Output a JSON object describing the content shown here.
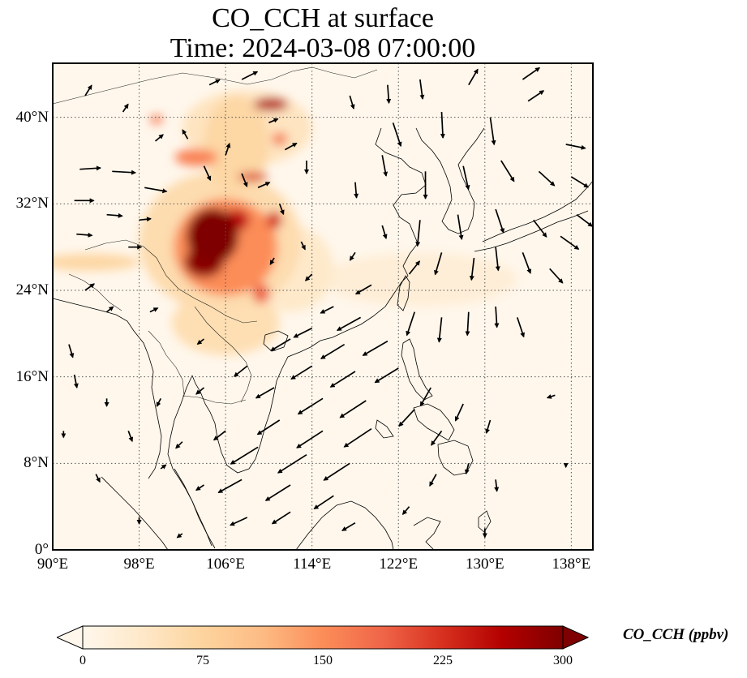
{
  "title": {
    "line1": "CO_CCH at surface",
    "line2": "Time: 2024-03-08 07:00:00"
  },
  "map": {
    "extent": {
      "lon_min": 90,
      "lon_max": 140,
      "lat_min": 0,
      "lat_max": 45
    },
    "lat_ticks": [
      {
        "value": 0,
        "label": "0°"
      },
      {
        "value": 8,
        "label": "8°N"
      },
      {
        "value": 16,
        "label": "16°N"
      },
      {
        "value": 24,
        "label": "24°N"
      },
      {
        "value": 32,
        "label": "32°N"
      },
      {
        "value": 40,
        "label": "40°N"
      }
    ],
    "lon_ticks": [
      {
        "value": 90,
        "label": "90°E"
      },
      {
        "value": 98,
        "label": "98°E"
      },
      {
        "value": 106,
        "label": "106°E"
      },
      {
        "value": 114,
        "label": "114°E"
      },
      {
        "value": 122,
        "label": "122°E"
      },
      {
        "value": 130,
        "label": "130°E"
      },
      {
        "value": 138,
        "label": "138°E"
      }
    ],
    "gridlines": "dotted",
    "colormap_stops": [
      "#fff7ec",
      "#fee8c8",
      "#fdd49e",
      "#fdbb84",
      "#fc8d59",
      "#ef6548",
      "#d7301f",
      "#b30000",
      "#7f0000"
    ],
    "concentration_features": [
      {
        "lon": 104.8,
        "lat": 29.0,
        "rlon": 2.4,
        "rlat": 2.6,
        "value": 300
      },
      {
        "lon": 104.0,
        "lat": 26.6,
        "rlon": 1.8,
        "rlat": 1.4,
        "value": 290
      },
      {
        "lon": 107.0,
        "lat": 30.5,
        "rlon": 1.2,
        "rlat": 1.0,
        "value": 250
      },
      {
        "lon": 106.0,
        "lat": 28.0,
        "rlon": 4.8,
        "rlat": 4.5,
        "value": 150
      },
      {
        "lon": 105.5,
        "lat": 28.5,
        "rlon": 7.5,
        "rlat": 6.5,
        "value": 60
      },
      {
        "lon": 110.2,
        "lat": 41.2,
        "rlon": 1.6,
        "rlat": 0.6,
        "value": 260
      },
      {
        "lon": 111.0,
        "lat": 38.0,
        "rlon": 0.7,
        "rlat": 0.6,
        "value": 170
      },
      {
        "lon": 108.5,
        "lat": 34.5,
        "rlon": 1.4,
        "rlat": 0.4,
        "value": 220
      },
      {
        "lon": 103.3,
        "lat": 36.3,
        "rlon": 2.0,
        "rlat": 0.8,
        "value": 160
      },
      {
        "lon": 99.6,
        "lat": 39.8,
        "rlon": 0.6,
        "rlat": 0.4,
        "value": 170
      },
      {
        "lon": 110.5,
        "lat": 30.5,
        "rlon": 0.7,
        "rlat": 0.8,
        "value": 230
      },
      {
        "lon": 109.3,
        "lat": 23.7,
        "rlon": 0.8,
        "rlat": 0.9,
        "value": 190
      },
      {
        "lon": 107.0,
        "lat": 37.5,
        "rlon": 3.0,
        "rlat": 4.5,
        "value": 70
      },
      {
        "lon": 108.0,
        "lat": 39.0,
        "rlon": 6.0,
        "rlat": 3.5,
        "value": 45
      },
      {
        "lon": 106.0,
        "lat": 21.0,
        "rlon": 5.0,
        "rlat": 3.0,
        "value": 55
      },
      {
        "lon": 93.5,
        "lat": 26.6,
        "rlon": 4.5,
        "rlat": 0.8,
        "value": 70
      },
      {
        "lon": 112.0,
        "lat": 26.0,
        "rlon": 4.0,
        "rlat": 4.0,
        "value": 35
      },
      {
        "lon": 124.0,
        "lat": 25.0,
        "rlon": 9.0,
        "rlat": 2.5,
        "value": 22
      }
    ],
    "wind_vectors": [
      {
        "lon": 92.5,
        "lat": 35.2,
        "u": 1.6,
        "v": 0.1
      },
      {
        "lon": 95.5,
        "lat": 35.0,
        "u": 1.8,
        "v": -0.1
      },
      {
        "lon": 98.5,
        "lat": 33.5,
        "u": 1.7,
        "v": -0.3
      },
      {
        "lon": 92.0,
        "lat": 32.3,
        "u": 1.5,
        "v": 0.0
      },
      {
        "lon": 95.0,
        "lat": 31.0,
        "u": 1.2,
        "v": -0.1
      },
      {
        "lon": 92.2,
        "lat": 29.2,
        "u": 1.2,
        "v": -0.1
      },
      {
        "lon": 98.0,
        "lat": 30.5,
        "u": 0.9,
        "v": 0.1
      },
      {
        "lon": 97.0,
        "lat": 28.0,
        "u": 1.0,
        "v": 0.0
      },
      {
        "lon": 93.0,
        "lat": 24.0,
        "u": 0.7,
        "v": 0.5
      },
      {
        "lon": 95.0,
        "lat": 22.0,
        "u": 0.5,
        "v": 0.4
      },
      {
        "lon": 99.0,
        "lat": 22.0,
        "u": 0.6,
        "v": 0.3
      },
      {
        "lon": 91.5,
        "lat": 19.0,
        "u": 0.3,
        "v": -1.0
      },
      {
        "lon": 92.0,
        "lat": 16.2,
        "u": 0.2,
        "v": -1.0
      },
      {
        "lon": 95.0,
        "lat": 14.0,
        "u": 0.0,
        "v": -0.6
      },
      {
        "lon": 97.0,
        "lat": 11.0,
        "u": 0.3,
        "v": -0.8
      },
      {
        "lon": 91.0,
        "lat": 11.0,
        "u": 0.0,
        "v": -0.5
      },
      {
        "lon": 94.0,
        "lat": 7.0,
        "u": 0.3,
        "v": -0.6
      },
      {
        "lon": 100.0,
        "lat": 7.5,
        "u": 0.4,
        "v": 0.3
      },
      {
        "lon": 93.0,
        "lat": 42.0,
        "u": 0.5,
        "v": 0.8
      },
      {
        "lon": 96.5,
        "lat": 40.5,
        "u": 0.4,
        "v": 0.6
      },
      {
        "lon": 99.5,
        "lat": 37.8,
        "u": 0.6,
        "v": 0.5
      },
      {
        "lon": 102.5,
        "lat": 38.0,
        "u": -0.4,
        "v": 0.7
      },
      {
        "lon": 104.0,
        "lat": 35.5,
        "u": 0.5,
        "v": -1.1
      },
      {
        "lon": 106.0,
        "lat": 36.5,
        "u": 0.3,
        "v": 0.9
      },
      {
        "lon": 107.5,
        "lat": 34.8,
        "u": 0.4,
        "v": -1.0
      },
      {
        "lon": 109.0,
        "lat": 33.5,
        "u": 0.9,
        "v": 0.4
      },
      {
        "lon": 104.5,
        "lat": 43.0,
        "u": 0.8,
        "v": 0.4
      },
      {
        "lon": 107.5,
        "lat": 43.5,
        "u": 1.2,
        "v": 0.6
      },
      {
        "lon": 110.0,
        "lat": 39.5,
        "u": 0.7,
        "v": 0.3
      },
      {
        "lon": 111.5,
        "lat": 37.0,
        "u": 0.9,
        "v": 0.5
      },
      {
        "lon": 113.5,
        "lat": 36.0,
        "u": 0.0,
        "v": -1.0
      },
      {
        "lon": 111.0,
        "lat": 32.0,
        "u": 0.3,
        "v": -0.8
      },
      {
        "lon": 113.0,
        "lat": 28.5,
        "u": 0.3,
        "v": -0.6
      },
      {
        "lon": 110.5,
        "lat": 27.0,
        "u": -0.3,
        "v": -0.5
      },
      {
        "lon": 114.0,
        "lat": 25.5,
        "u": -0.5,
        "v": -0.5
      },
      {
        "lon": 116.0,
        "lat": 22.5,
        "u": -1.0,
        "v": -0.5
      },
      {
        "lon": 114.0,
        "lat": 20.5,
        "u": -1.4,
        "v": -0.7
      },
      {
        "lon": 118.5,
        "lat": 21.5,
        "u": -1.8,
        "v": -1.0
      },
      {
        "lon": 112.0,
        "lat": 19.5,
        "u": -1.5,
        "v": -0.9
      },
      {
        "lon": 117.0,
        "lat": 19.0,
        "u": -1.8,
        "v": -1.1
      },
      {
        "lon": 121.0,
        "lat": 19.3,
        "u": -1.9,
        "v": -1.1
      },
      {
        "lon": 114.0,
        "lat": 17.0,
        "u": -1.6,
        "v": -1.0
      },
      {
        "lon": 118.0,
        "lat": 16.5,
        "u": -1.9,
        "v": -1.2
      },
      {
        "lon": 122.0,
        "lat": 16.8,
        "u": -1.8,
        "v": -1.1
      },
      {
        "lon": 110.5,
        "lat": 15.0,
        "u": -1.4,
        "v": -0.8
      },
      {
        "lon": 115.0,
        "lat": 14.0,
        "u": -1.9,
        "v": -1.2
      },
      {
        "lon": 119.0,
        "lat": 13.8,
        "u": -2.0,
        "v": -1.3
      },
      {
        "lon": 111.0,
        "lat": 12.0,
        "u": -1.7,
        "v": -1.1
      },
      {
        "lon": 115.0,
        "lat": 11.0,
        "u": -2.0,
        "v": -1.3
      },
      {
        "lon": 119.5,
        "lat": 11.2,
        "u": -2.1,
        "v": -1.4
      },
      {
        "lon": 109.0,
        "lat": 9.5,
        "u": -2.1,
        "v": -1.3
      },
      {
        "lon": 113.5,
        "lat": 8.8,
        "u": -2.2,
        "v": -1.4
      },
      {
        "lon": 117.5,
        "lat": 8.0,
        "u": -2.0,
        "v": -1.3
      },
      {
        "lon": 107.5,
        "lat": 6.5,
        "u": -1.8,
        "v": -1.0
      },
      {
        "lon": 112.0,
        "lat": 6.0,
        "u": -1.9,
        "v": -1.2
      },
      {
        "lon": 116.0,
        "lat": 5.0,
        "u": -1.5,
        "v": -1.0
      },
      {
        "lon": 112.0,
        "lat": 3.5,
        "u": -1.4,
        "v": -0.9
      },
      {
        "lon": 108.0,
        "lat": 3.0,
        "u": -1.3,
        "v": -0.6
      },
      {
        "lon": 118.0,
        "lat": 2.5,
        "u": -1.0,
        "v": -0.6
      },
      {
        "lon": 104.0,
        "lat": 6.0,
        "u": -0.6,
        "v": -0.4
      },
      {
        "lon": 102.0,
        "lat": 10.0,
        "u": -0.5,
        "v": -0.5
      },
      {
        "lon": 106.0,
        "lat": 11.0,
        "u": -0.9,
        "v": -0.7
      },
      {
        "lon": 104.0,
        "lat": 15.0,
        "u": -0.6,
        "v": -0.5
      },
      {
        "lon": 108.0,
        "lat": 17.0,
        "u": -1.0,
        "v": -0.8
      },
      {
        "lon": 104.0,
        "lat": 19.5,
        "u": -0.5,
        "v": -0.4
      },
      {
        "lon": 100.0,
        "lat": 14.0,
        "u": -0.3,
        "v": -0.6
      },
      {
        "lon": 98.0,
        "lat": 3.0,
        "u": 0.0,
        "v": -0.5
      },
      {
        "lon": 102.0,
        "lat": 1.5,
        "u": -0.4,
        "v": -0.3
      },
      {
        "lon": 123.5,
        "lat": 13.0,
        "u": -1.2,
        "v": -1.3
      },
      {
        "lon": 125.0,
        "lat": 15.0,
        "u": -0.8,
        "v": -1.4
      },
      {
        "lon": 126.0,
        "lat": 11.0,
        "u": -0.8,
        "v": -1.1
      },
      {
        "lon": 128.0,
        "lat": 13.5,
        "u": -0.6,
        "v": -1.3
      },
      {
        "lon": 130.5,
        "lat": 12.0,
        "u": -0.3,
        "v": -1.0
      },
      {
        "lon": 128.5,
        "lat": 8.0,
        "u": -0.2,
        "v": -0.8
      },
      {
        "lon": 125.5,
        "lat": 7.0,
        "u": -0.5,
        "v": -0.9
      },
      {
        "lon": 131.0,
        "lat": 6.5,
        "u": 0.1,
        "v": -0.9
      },
      {
        "lon": 123.0,
        "lat": 4.0,
        "u": -0.5,
        "v": -0.6
      },
      {
        "lon": 130.0,
        "lat": 2.0,
        "u": 0.0,
        "v": -0.7
      },
      {
        "lon": 136.5,
        "lat": 14.3,
        "u": -0.6,
        "v": -0.2
      },
      {
        "lon": 137.5,
        "lat": 8.0,
        "u": 0.0,
        "v": -0.3
      },
      {
        "lon": 123.5,
        "lat": 22.0,
        "u": -0.6,
        "v": -1.8
      },
      {
        "lon": 126.0,
        "lat": 21.5,
        "u": -0.2,
        "v": -1.9
      },
      {
        "lon": 128.5,
        "lat": 22.0,
        "u": -0.1,
        "v": -1.8
      },
      {
        "lon": 131.0,
        "lat": 22.5,
        "u": 0.1,
        "v": -1.6
      },
      {
        "lon": 133.0,
        "lat": 21.5,
        "u": 0.5,
        "v": -1.5
      },
      {
        "lon": 123.0,
        "lat": 25.5,
        "u": 0.8,
        "v": 1.0
      },
      {
        "lon": 126.0,
        "lat": 27.5,
        "u": -0.5,
        "v": -1.7
      },
      {
        "lon": 129.0,
        "lat": 27.0,
        "u": -0.2,
        "v": -1.7
      },
      {
        "lon": 131.0,
        "lat": 28.0,
        "u": 0.2,
        "v": -1.8
      },
      {
        "lon": 133.5,
        "lat": 27.5,
        "u": 0.6,
        "v": -1.6
      },
      {
        "lon": 136.0,
        "lat": 26.0,
        "u": 1.0,
        "v": -1.1
      },
      {
        "lon": 137.0,
        "lat": 29.0,
        "u": 1.4,
        "v": -1.0
      },
      {
        "lon": 124.0,
        "lat": 30.5,
        "u": -0.2,
        "v": -2.0
      },
      {
        "lon": 127.5,
        "lat": 31.0,
        "u": 0.3,
        "v": -1.9
      },
      {
        "lon": 131.0,
        "lat": 31.5,
        "u": 0.6,
        "v": -1.8
      },
      {
        "lon": 134.5,
        "lat": 30.5,
        "u": 1.0,
        "v": -1.3
      },
      {
        "lon": 138.5,
        "lat": 31.0,
        "u": 1.2,
        "v": -0.9
      },
      {
        "lon": 124.5,
        "lat": 35.0,
        "u": 0.0,
        "v": -2.1
      },
      {
        "lon": 128.0,
        "lat": 35.5,
        "u": 0.4,
        "v": -1.8
      },
      {
        "lon": 131.5,
        "lat": 36.0,
        "u": 1.0,
        "v": -1.6
      },
      {
        "lon": 135.0,
        "lat": 35.0,
        "u": 1.2,
        "v": -1.1
      },
      {
        "lon": 138.0,
        "lat": 34.5,
        "u": 1.3,
        "v": -0.8
      },
      {
        "lon": 126.0,
        "lat": 40.5,
        "u": 0.1,
        "v": -2.0
      },
      {
        "lon": 130.5,
        "lat": 40.0,
        "u": 0.3,
        "v": -2.1
      },
      {
        "lon": 134.0,
        "lat": 41.5,
        "u": 1.2,
        "v": 0.8
      },
      {
        "lon": 137.5,
        "lat": 37.5,
        "u": 1.5,
        "v": -0.3
      },
      {
        "lon": 121.5,
        "lat": 39.5,
        "u": 0.6,
        "v": -1.8
      },
      {
        "lon": 120.5,
        "lat": 36.5,
        "u": 0.3,
        "v": -1.6
      },
      {
        "lon": 118.0,
        "lat": 34.0,
        "u": 0.1,
        "v": -1.2
      },
      {
        "lon": 117.5,
        "lat": 42.0,
        "u": 0.3,
        "v": -1.0
      },
      {
        "lon": 121.0,
        "lat": 43.0,
        "u": 0.1,
        "v": -1.4
      },
      {
        "lon": 124.0,
        "lat": 43.5,
        "u": 0.2,
        "v": -1.5
      },
      {
        "lon": 128.5,
        "lat": 43.0,
        "u": 0.7,
        "v": 1.2
      },
      {
        "lon": 133.5,
        "lat": 43.5,
        "u": 1.3,
        "v": 0.9
      },
      {
        "lon": 120.5,
        "lat": 30.0,
        "u": 0.3,
        "v": -1.0
      },
      {
        "lon": 118.0,
        "lat": 27.5,
        "u": -0.4,
        "v": -0.6
      },
      {
        "lon": 119.5,
        "lat": 24.5,
        "u": -1.2,
        "v": -0.7
      }
    ]
  },
  "colorbar": {
    "label": "CO_CCH (ppbv)",
    "min": 0,
    "max": 300,
    "extend": "both",
    "ticks": [
      {
        "value": 0,
        "label": "0"
      },
      {
        "value": 75,
        "label": "75"
      },
      {
        "value": 150,
        "label": "150"
      },
      {
        "value": 225,
        "label": "225"
      },
      {
        "value": 300,
        "label": "300"
      }
    ]
  }
}
